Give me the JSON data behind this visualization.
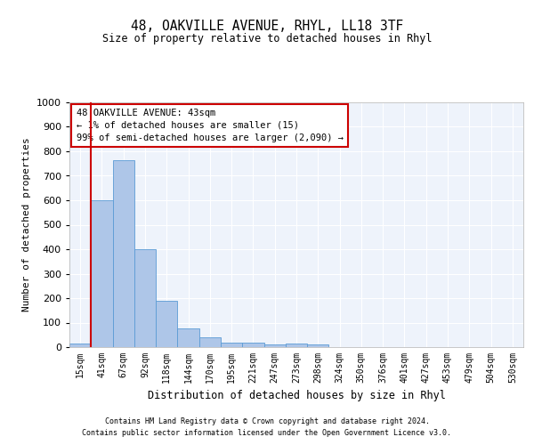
{
  "title": "48, OAKVILLE AVENUE, RHYL, LL18 3TF",
  "subtitle": "Size of property relative to detached houses in Rhyl",
  "xlabel": "Distribution of detached houses by size in Rhyl",
  "ylabel": "Number of detached properties",
  "bar_labels": [
    "15sqm",
    "41sqm",
    "67sqm",
    "92sqm",
    "118sqm",
    "144sqm",
    "170sqm",
    "195sqm",
    "221sqm",
    "247sqm",
    "273sqm",
    "298sqm",
    "324sqm",
    "350sqm",
    "376sqm",
    "401sqm",
    "427sqm",
    "453sqm",
    "479sqm",
    "504sqm",
    "530sqm"
  ],
  "bar_values": [
    15,
    600,
    765,
    400,
    190,
    78,
    40,
    20,
    17,
    10,
    15,
    10,
    0,
    0,
    0,
    0,
    0,
    0,
    0,
    0,
    0
  ],
  "bar_color": "#aec6e8",
  "bar_edgecolor": "#5b9bd5",
  "ylim": [
    0,
    1000
  ],
  "yticks": [
    0,
    100,
    200,
    300,
    400,
    500,
    600,
    700,
    800,
    900,
    1000
  ],
  "vline_color": "#cc0000",
  "annotation_text": "48 OAKVILLE AVENUE: 43sqm\n← 1% of detached houses are smaller (15)\n99% of semi-detached houses are larger (2,090) →",
  "annotation_box_color": "#cc0000",
  "footer_line1": "Contains HM Land Registry data © Crown copyright and database right 2024.",
  "footer_line2": "Contains public sector information licensed under the Open Government Licence v3.0.",
  "bg_color": "#eef3fb",
  "grid_color": "#ffffff"
}
